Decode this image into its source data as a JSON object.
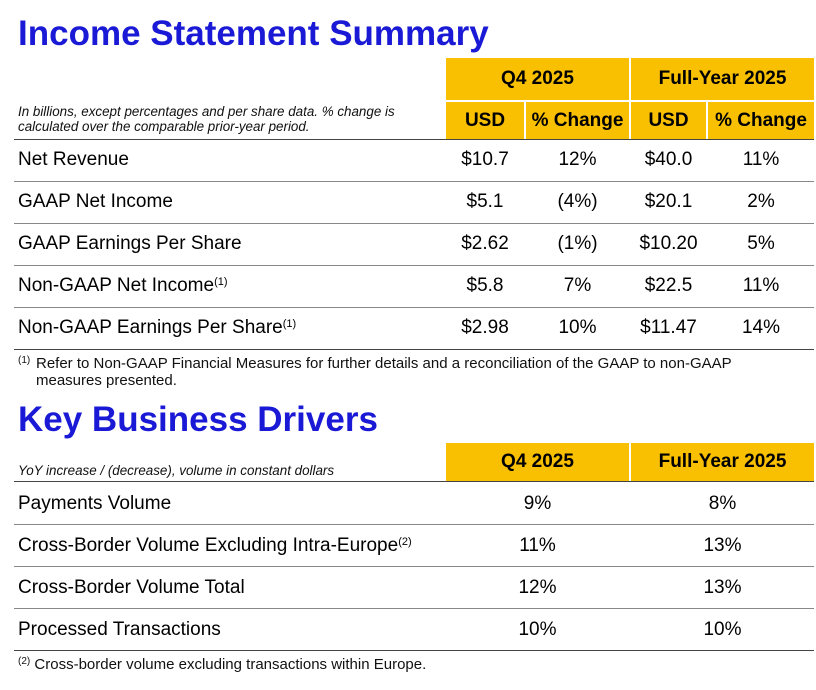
{
  "income": {
    "title": "Income Statement Summary",
    "note": "In billions, except percentages and per share data. % change is calculated over the comparable prior-year period.",
    "groups": {
      "q4": "Q4 2025",
      "fy": "Full-Year 2025"
    },
    "subheads": [
      "USD",
      "% Change",
      "USD",
      "% Change"
    ],
    "rows": [
      {
        "label": "Net Revenue",
        "sup": "",
        "q4_usd": "$10.7",
        "q4_chg": "12%",
        "fy_usd": "$40.0",
        "fy_chg": "11%"
      },
      {
        "label": "GAAP Net Income",
        "sup": "",
        "q4_usd": "$5.1",
        "q4_chg": "(4%)",
        "fy_usd": "$20.1",
        "fy_chg": "2%"
      },
      {
        "label": "GAAP Earnings Per Share",
        "sup": "",
        "q4_usd": "$2.62",
        "q4_chg": "(1%)",
        "fy_usd": "$10.20",
        "fy_chg": "5%"
      },
      {
        "label": "Non-GAAP Net Income",
        "sup": "(1)",
        "q4_usd": "$5.8",
        "q4_chg": "7%",
        "fy_usd": "$22.5",
        "fy_chg": "11%"
      },
      {
        "label": "Non-GAAP Earnings Per Share",
        "sup": "(1)",
        "q4_usd": "$2.98",
        "q4_chg": "10%",
        "fy_usd": "$11.47",
        "fy_chg": "14%"
      }
    ],
    "footnote": {
      "sup": "(1)",
      "text": "Refer to Non-GAAP Financial Measures for further details and a reconciliation of the GAAP to non-GAAP measures presented."
    }
  },
  "drivers": {
    "title": "Key Business Drivers",
    "note": "YoY increase / (decrease), volume in constant dollars",
    "groups": {
      "q4": "Q4 2025",
      "fy": "Full-Year 2025"
    },
    "rows": [
      {
        "label": "Payments Volume",
        "sup": "",
        "q4": "9%",
        "fy": "8%"
      },
      {
        "label": "Cross-Border Volume Excluding Intra-Europe",
        "sup": "(2)",
        "q4": "11%",
        "fy": "13%"
      },
      {
        "label": "Cross-Border Volume Total",
        "sup": "",
        "q4": "12%",
        "fy": "13%"
      },
      {
        "label": "Processed Transactions",
        "sup": "",
        "q4": "10%",
        "fy": "10%"
      }
    ],
    "footnote": {
      "sup": "(2)",
      "text": "Cross-border volume excluding transactions within Europe."
    }
  }
}
